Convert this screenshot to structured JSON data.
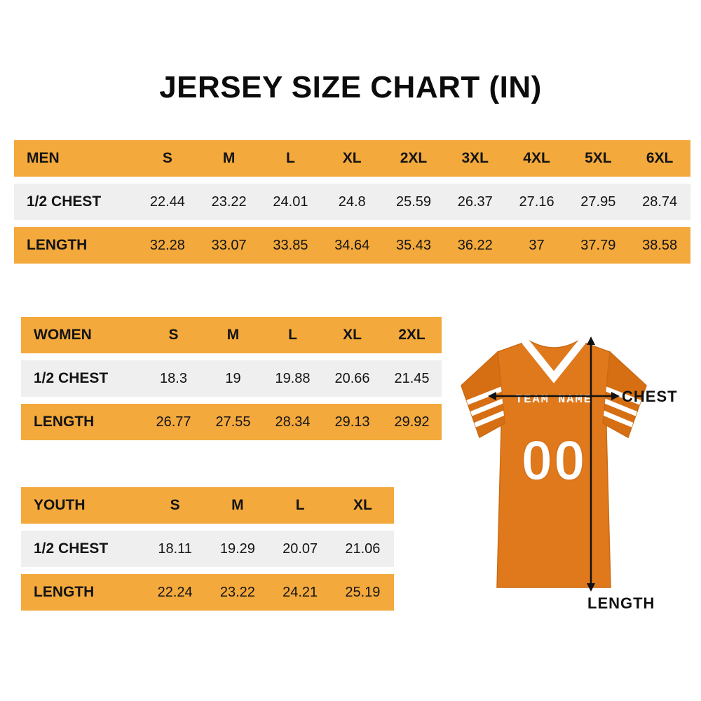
{
  "title": "JERSEY SIZE CHART (IN)",
  "colors": {
    "header_row_orange": "#F3A93C",
    "data_row_gray": "#EFEFEF",
    "jersey_body_orange": "#E0791C",
    "jersey_sleeve_orange": "#D66F14",
    "text_black": "#111111"
  },
  "chart_data": [
    {
      "key": "men",
      "type": "table",
      "title": "MEN",
      "header": [
        "MEN",
        "S",
        "M",
        "L",
        "XL",
        "2XL",
        "3XL",
        "4XL",
        "5XL",
        "6XL"
      ],
      "rows": [
        {
          "label": "1/2 CHEST",
          "values": [
            "22.44",
            "23.22",
            "24.01",
            "24.8",
            "25.59",
            "26.37",
            "27.16",
            "27.95",
            "28.74"
          ]
        },
        {
          "label": "LENGTH",
          "values": [
            "32.28",
            "33.07",
            "33.85",
            "34.64",
            "35.43",
            "36.22",
            "37",
            "37.79",
            "38.58"
          ]
        }
      ]
    },
    {
      "key": "women",
      "type": "table",
      "title": "WOMEN",
      "header": [
        "WOMEN",
        "S",
        "M",
        "L",
        "XL",
        "2XL"
      ],
      "rows": [
        {
          "label": "1/2 CHEST",
          "values": [
            "18.3",
            "19",
            "19.88",
            "20.66",
            "21.45"
          ]
        },
        {
          "label": "LENGTH",
          "values": [
            "26.77",
            "27.55",
            "28.34",
            "29.13",
            "29.92"
          ]
        }
      ]
    },
    {
      "key": "youth",
      "type": "table",
      "title": "YOUTH",
      "header": [
        "YOUTH",
        "S",
        "M",
        "L",
        "XL"
      ],
      "rows": [
        {
          "label": "1/2 CHEST",
          "values": [
            "18.11",
            "19.29",
            "20.07",
            "21.06"
          ]
        },
        {
          "label": "LENGTH",
          "values": [
            "22.24",
            "23.22",
            "24.21",
            "25.19"
          ]
        }
      ]
    }
  ],
  "jersey": {
    "team_name": "TEAM NAME",
    "number": "00",
    "chest_label": "CHEST",
    "length_label": "LENGTH"
  }
}
